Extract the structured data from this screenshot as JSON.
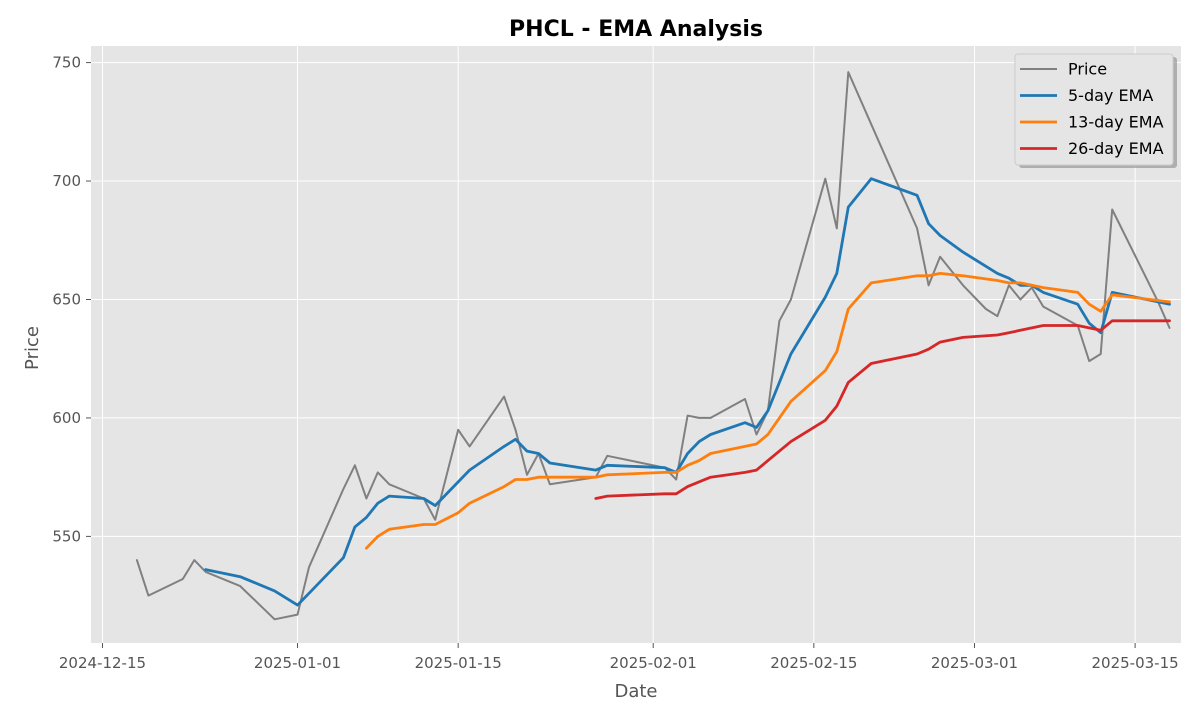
{
  "chart_data": {
    "type": "line",
    "title": "PHCL - EMA Analysis",
    "xlabel": "Date",
    "ylabel": "Price",
    "x_range": [
      "2024-12-14",
      "2025-03-19"
    ],
    "ylim": [
      505,
      757
    ],
    "x_ticks": [
      {
        "date": "2024-12-15",
        "label": "2024-12-15"
      },
      {
        "date": "2025-01-01",
        "label": "2025-01-01"
      },
      {
        "date": "2025-01-15",
        "label": "2025-01-15"
      },
      {
        "date": "2025-02-01",
        "label": "2025-02-01"
      },
      {
        "date": "2025-02-15",
        "label": "2025-02-15"
      },
      {
        "date": "2025-03-01",
        "label": "2025-03-01"
      },
      {
        "date": "2025-03-15",
        "label": "2025-03-15"
      }
    ],
    "y_ticks": [
      550,
      600,
      650,
      700,
      750
    ],
    "grid": true,
    "legend_position": "top-right",
    "series": [
      {
        "name": "Price",
        "color": "#808080",
        "points": [
          [
            "2024-12-18",
            540
          ],
          [
            "2024-12-19",
            525
          ],
          [
            "2024-12-22",
            532
          ],
          [
            "2024-12-23",
            540
          ],
          [
            "2024-12-24",
            535
          ],
          [
            "2024-12-27",
            529
          ],
          [
            "2024-12-30",
            515
          ],
          [
            "2025-01-01",
            517
          ],
          [
            "2025-01-02",
            537
          ],
          [
            "2025-01-05",
            570
          ],
          [
            "2025-01-06",
            580
          ],
          [
            "2025-01-07",
            566
          ],
          [
            "2025-01-08",
            577
          ],
          [
            "2025-01-09",
            572
          ],
          [
            "2025-01-12",
            566
          ],
          [
            "2025-01-13",
            557
          ],
          [
            "2025-01-15",
            595
          ],
          [
            "2025-01-16",
            588
          ],
          [
            "2025-01-19",
            609
          ],
          [
            "2025-01-20",
            595
          ],
          [
            "2025-01-21",
            576
          ],
          [
            "2025-01-22",
            585
          ],
          [
            "2025-01-23",
            572
          ],
          [
            "2025-01-27",
            575
          ],
          [
            "2025-01-28",
            584
          ],
          [
            "2025-02-02",
            579
          ],
          [
            "2025-02-03",
            574
          ],
          [
            "2025-02-04",
            601
          ],
          [
            "2025-02-05",
            600
          ],
          [
            "2025-02-06",
            600
          ],
          [
            "2025-02-09",
            608
          ],
          [
            "2025-02-10",
            593
          ],
          [
            "2025-02-11",
            603
          ],
          [
            "2025-02-12",
            641
          ],
          [
            "2025-02-13",
            650
          ],
          [
            "2025-02-16",
            701
          ],
          [
            "2025-02-17",
            680
          ],
          [
            "2025-02-18",
            746
          ],
          [
            "2025-02-20",
            724
          ],
          [
            "2025-02-24",
            680
          ],
          [
            "2025-02-25",
            656
          ],
          [
            "2025-02-26",
            668
          ],
          [
            "2025-02-28",
            656
          ],
          [
            "2025-03-02",
            646
          ],
          [
            "2025-03-03",
            643
          ],
          [
            "2025-03-04",
            656
          ],
          [
            "2025-03-05",
            650
          ],
          [
            "2025-03-06",
            655
          ],
          [
            "2025-03-07",
            647
          ],
          [
            "2025-03-10",
            639
          ],
          [
            "2025-03-11",
            624
          ],
          [
            "2025-03-12",
            627
          ],
          [
            "2025-03-13",
            688
          ],
          [
            "2025-03-17",
            649
          ],
          [
            "2025-03-18",
            638
          ]
        ]
      },
      {
        "name": "5-day EMA",
        "color": "#1f77b4",
        "points": [
          [
            "2024-12-24",
            536
          ],
          [
            "2024-12-27",
            533
          ],
          [
            "2024-12-30",
            527
          ],
          [
            "2025-01-01",
            521
          ],
          [
            "2025-01-02",
            526
          ],
          [
            "2025-01-05",
            541
          ],
          [
            "2025-01-06",
            554
          ],
          [
            "2025-01-07",
            558
          ],
          [
            "2025-01-08",
            564
          ],
          [
            "2025-01-09",
            567
          ],
          [
            "2025-01-12",
            566
          ],
          [
            "2025-01-13",
            563
          ],
          [
            "2025-01-15",
            573
          ],
          [
            "2025-01-16",
            578
          ],
          [
            "2025-01-19",
            588
          ],
          [
            "2025-01-20",
            591
          ],
          [
            "2025-01-21",
            586
          ],
          [
            "2025-01-22",
            585
          ],
          [
            "2025-01-23",
            581
          ],
          [
            "2025-01-27",
            578
          ],
          [
            "2025-01-28",
            580
          ],
          [
            "2025-02-02",
            579
          ],
          [
            "2025-02-03",
            577
          ],
          [
            "2025-02-04",
            585
          ],
          [
            "2025-02-05",
            590
          ],
          [
            "2025-02-06",
            593
          ],
          [
            "2025-02-09",
            598
          ],
          [
            "2025-02-10",
            596
          ],
          [
            "2025-02-11",
            603
          ],
          [
            "2025-02-13",
            627
          ],
          [
            "2025-02-16",
            651
          ],
          [
            "2025-02-17",
            661
          ],
          [
            "2025-02-18",
            689
          ],
          [
            "2025-02-20",
            701
          ],
          [
            "2025-02-24",
            694
          ],
          [
            "2025-02-25",
            682
          ],
          [
            "2025-02-26",
            677
          ],
          [
            "2025-02-28",
            670
          ],
          [
            "2025-03-03",
            661
          ],
          [
            "2025-03-04",
            659
          ],
          [
            "2025-03-05",
            656
          ],
          [
            "2025-03-06",
            656
          ],
          [
            "2025-03-07",
            653
          ],
          [
            "2025-03-10",
            648
          ],
          [
            "2025-03-11",
            640
          ],
          [
            "2025-03-12",
            636
          ],
          [
            "2025-03-13",
            653
          ],
          [
            "2025-03-18",
            648
          ]
        ]
      },
      {
        "name": "13-day EMA",
        "color": "#ff7f0e",
        "points": [
          [
            "2025-01-07",
            545
          ],
          [
            "2025-01-08",
            550
          ],
          [
            "2025-01-09",
            553
          ],
          [
            "2025-01-12",
            555
          ],
          [
            "2025-01-13",
            555
          ],
          [
            "2025-01-15",
            560
          ],
          [
            "2025-01-16",
            564
          ],
          [
            "2025-01-19",
            571
          ],
          [
            "2025-01-20",
            574
          ],
          [
            "2025-01-21",
            574
          ],
          [
            "2025-01-22",
            575
          ],
          [
            "2025-01-23",
            575
          ],
          [
            "2025-01-27",
            575
          ],
          [
            "2025-01-28",
            576
          ],
          [
            "2025-02-02",
            577
          ],
          [
            "2025-02-03",
            577
          ],
          [
            "2025-02-04",
            580
          ],
          [
            "2025-02-05",
            582
          ],
          [
            "2025-02-06",
            585
          ],
          [
            "2025-02-09",
            588
          ],
          [
            "2025-02-10",
            589
          ],
          [
            "2025-02-11",
            593
          ],
          [
            "2025-02-13",
            607
          ],
          [
            "2025-02-16",
            620
          ],
          [
            "2025-02-17",
            628
          ],
          [
            "2025-02-18",
            646
          ],
          [
            "2025-02-20",
            657
          ],
          [
            "2025-02-24",
            660
          ],
          [
            "2025-02-25",
            660
          ],
          [
            "2025-02-26",
            661
          ],
          [
            "2025-02-28",
            660
          ],
          [
            "2025-03-03",
            658
          ],
          [
            "2025-03-04",
            657
          ],
          [
            "2025-03-05",
            657
          ],
          [
            "2025-03-06",
            656
          ],
          [
            "2025-03-07",
            655
          ],
          [
            "2025-03-10",
            653
          ],
          [
            "2025-03-11",
            648
          ],
          [
            "2025-03-12",
            645
          ],
          [
            "2025-03-13",
            652
          ],
          [
            "2025-03-18",
            649
          ]
        ]
      },
      {
        "name": "26-day EMA",
        "color": "#d62728",
        "points": [
          [
            "2025-01-27",
            566
          ],
          [
            "2025-01-28",
            567
          ],
          [
            "2025-02-02",
            568
          ],
          [
            "2025-02-03",
            568
          ],
          [
            "2025-02-04",
            571
          ],
          [
            "2025-02-06",
            575
          ],
          [
            "2025-02-09",
            577
          ],
          [
            "2025-02-10",
            578
          ],
          [
            "2025-02-11",
            582
          ],
          [
            "2025-02-13",
            590
          ],
          [
            "2025-02-16",
            599
          ],
          [
            "2025-02-17",
            605
          ],
          [
            "2025-02-18",
            615
          ],
          [
            "2025-02-20",
            623
          ],
          [
            "2025-02-24",
            627
          ],
          [
            "2025-02-25",
            629
          ],
          [
            "2025-02-26",
            632
          ],
          [
            "2025-02-28",
            634
          ],
          [
            "2025-03-03",
            635
          ],
          [
            "2025-03-04",
            636
          ],
          [
            "2025-03-05",
            637
          ],
          [
            "2025-03-06",
            638
          ],
          [
            "2025-03-07",
            639
          ],
          [
            "2025-03-10",
            639
          ],
          [
            "2025-03-11",
            638
          ],
          [
            "2025-03-12",
            637
          ],
          [
            "2025-03-13",
            641
          ],
          [
            "2025-03-18",
            641
          ]
        ]
      }
    ]
  }
}
